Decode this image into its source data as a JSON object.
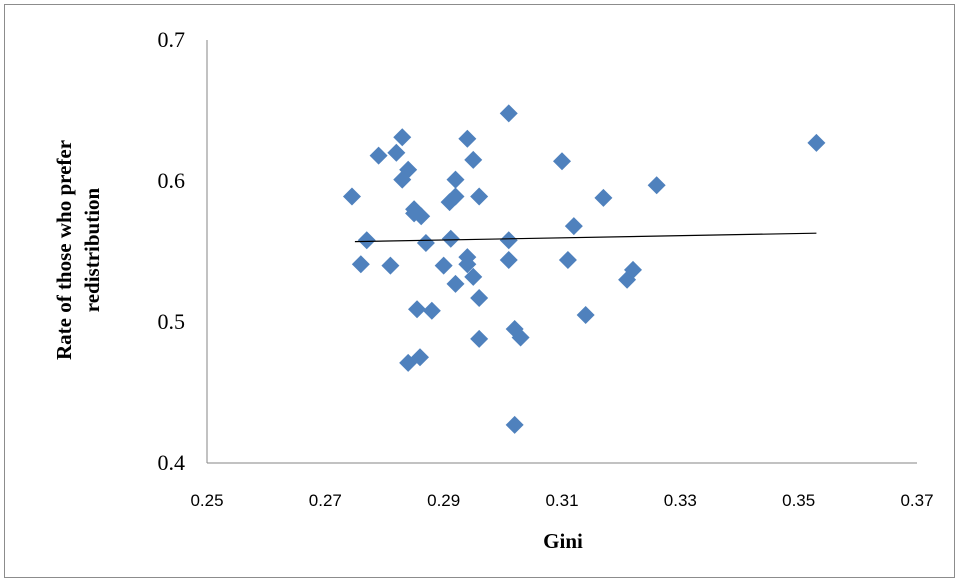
{
  "chart_data": {
    "type": "scatter",
    "title": "",
    "xlabel": "Gini",
    "ylabel_lines": [
      "Rate of those who prefer",
      "redistribution"
    ],
    "xlim": [
      0.25,
      0.37
    ],
    "ylim": [
      0.4,
      0.7
    ],
    "xticks": [
      "0.25",
      "0.27",
      "0.29",
      "0.31",
      "0.33",
      "0.35",
      "0.37"
    ],
    "yticks": [
      "0.4",
      "0.5",
      "0.6",
      "0.7"
    ],
    "grid": false,
    "legend": "none",
    "marker_color": "#4f81bd",
    "trendline_color": "#000000",
    "trendline": {
      "x": [
        0.275,
        0.353
      ],
      "y": [
        0.557,
        0.563
      ]
    },
    "points": [
      {
        "x": 0.2745,
        "y": 0.589
      },
      {
        "x": 0.276,
        "y": 0.541
      },
      {
        "x": 0.277,
        "y": 0.558
      },
      {
        "x": 0.279,
        "y": 0.618
      },
      {
        "x": 0.281,
        "y": 0.54
      },
      {
        "x": 0.282,
        "y": 0.62
      },
      {
        "x": 0.283,
        "y": 0.631
      },
      {
        "x": 0.283,
        "y": 0.601
      },
      {
        "x": 0.284,
        "y": 0.608
      },
      {
        "x": 0.284,
        "y": 0.471
      },
      {
        "x": 0.285,
        "y": 0.58
      },
      {
        "x": 0.285,
        "y": 0.577
      },
      {
        "x": 0.2855,
        "y": 0.509
      },
      {
        "x": 0.286,
        "y": 0.475
      },
      {
        "x": 0.2862,
        "y": 0.575
      },
      {
        "x": 0.287,
        "y": 0.556
      },
      {
        "x": 0.288,
        "y": 0.508
      },
      {
        "x": 0.29,
        "y": 0.54
      },
      {
        "x": 0.291,
        "y": 0.585
      },
      {
        "x": 0.2912,
        "y": 0.559
      },
      {
        "x": 0.292,
        "y": 0.601
      },
      {
        "x": 0.292,
        "y": 0.589
      },
      {
        "x": 0.292,
        "y": 0.527
      },
      {
        "x": 0.294,
        "y": 0.63
      },
      {
        "x": 0.294,
        "y": 0.546
      },
      {
        "x": 0.294,
        "y": 0.541
      },
      {
        "x": 0.295,
        "y": 0.615
      },
      {
        "x": 0.295,
        "y": 0.532
      },
      {
        "x": 0.296,
        "y": 0.589
      },
      {
        "x": 0.296,
        "y": 0.517
      },
      {
        "x": 0.296,
        "y": 0.488
      },
      {
        "x": 0.301,
        "y": 0.648
      },
      {
        "x": 0.301,
        "y": 0.558
      },
      {
        "x": 0.301,
        "y": 0.544
      },
      {
        "x": 0.302,
        "y": 0.495
      },
      {
        "x": 0.302,
        "y": 0.427
      },
      {
        "x": 0.303,
        "y": 0.489
      },
      {
        "x": 0.31,
        "y": 0.614
      },
      {
        "x": 0.311,
        "y": 0.544
      },
      {
        "x": 0.312,
        "y": 0.568
      },
      {
        "x": 0.314,
        "y": 0.505
      },
      {
        "x": 0.317,
        "y": 0.588
      },
      {
        "x": 0.321,
        "y": 0.53
      },
      {
        "x": 0.322,
        "y": 0.537
      },
      {
        "x": 0.326,
        "y": 0.597
      },
      {
        "x": 0.353,
        "y": 0.627
      }
    ]
  }
}
